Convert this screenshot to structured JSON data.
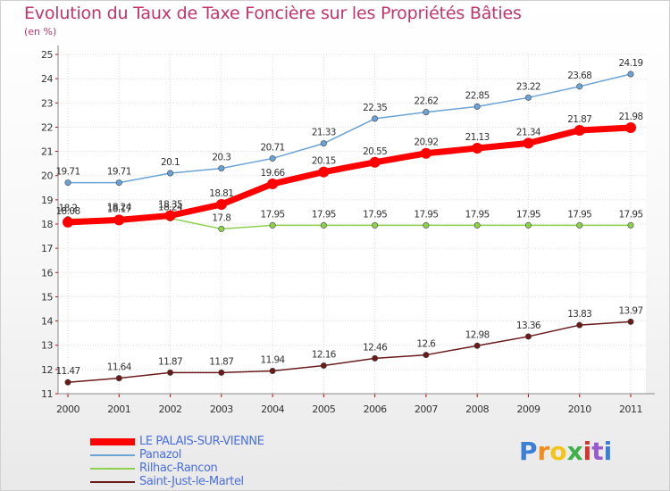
{
  "chart_data": {
    "type": "line",
    "title": "Evolution du Taux de Taxe Foncière sur les Propriétés Bâties",
    "subtitle": "(en %)",
    "categories": [
      "2000",
      "2001",
      "2002",
      "2003",
      "2004",
      "2005",
      "2006",
      "2007",
      "2008",
      "2009",
      "2010",
      "2011"
    ],
    "ylim": [
      11,
      25
    ],
    "yticks": [
      "11",
      "12",
      "13",
      "14",
      "15",
      "16",
      "17",
      "18",
      "19",
      "20",
      "21",
      "22",
      "23",
      "24",
      "25"
    ],
    "grid": true,
    "legend_position": "bottom-left",
    "series": [
      {
        "name": "Saint-Just-le-Martel",
        "color": "#6b1a1a",
        "values": [
          11.47,
          11.64,
          11.87,
          11.87,
          11.94,
          12.16,
          12.46,
          12.6,
          12.98,
          13.36,
          13.83,
          13.97
        ],
        "labels": [
          "11.47",
          "11.64",
          "11.87",
          "11.87",
          "11.94",
          "12.16",
          "12.46",
          "12.6",
          "12.98",
          "13.36",
          "13.83",
          "13.97"
        ]
      },
      {
        "name": "Rilhac-Rancon",
        "color": "#8fd14f",
        "values": [
          18.2,
          18.24,
          18.24,
          17.8,
          17.95,
          17.95,
          17.95,
          17.95,
          17.95,
          17.95,
          17.95,
          17.95
        ],
        "labels": [
          "18.2",
          "18.24",
          "18.24",
          "17.8",
          "17.95",
          "17.95",
          "17.95",
          "17.95",
          "17.95",
          "17.95",
          "17.95",
          "17.95"
        ]
      },
      {
        "name": "Panazol",
        "color": "#6ba3d6",
        "values": [
          19.71,
          19.71,
          20.1,
          20.3,
          20.71,
          21.33,
          22.35,
          22.62,
          22.85,
          23.22,
          23.68,
          24.19
        ],
        "labels": [
          "19.71",
          "19.71",
          "20.1",
          "20.3",
          "20.71",
          "21.33",
          "22.35",
          "22.62",
          "22.85",
          "23.22",
          "23.68",
          "24.19"
        ]
      },
      {
        "name": "LE PALAIS-SUR-VIENNE",
        "color": "#ff0000",
        "values": [
          18.08,
          18.17,
          18.35,
          18.81,
          19.66,
          20.15,
          20.55,
          20.92,
          21.13,
          21.34,
          21.87,
          21.98
        ],
        "labels": [
          "18.08",
          "18.17",
          "18.35",
          "18.81",
          "19.66",
          "20.15",
          "20.55",
          "20.92",
          "21.13",
          "21.34",
          "21.87",
          "21.98"
        ]
      }
    ]
  },
  "legend": {
    "items": [
      {
        "label": "LE PALAIS-SUR-VIENNE",
        "color": "#ff0000"
      },
      {
        "label": "Panazol",
        "color": "#6ba3d6"
      },
      {
        "label": "Rilhac-Rancon",
        "color": "#8fd14f"
      },
      {
        "label": "Saint-Just-le-Martel",
        "color": "#6b1a1a"
      }
    ]
  },
  "logo": {
    "text": "Proxiti",
    "letters": [
      {
        "ch": "P",
        "color": "#3a7fd6"
      },
      {
        "ch": "r",
        "color": "#f28c1c"
      },
      {
        "ch": "o",
        "color": "#f2c51c"
      },
      {
        "ch": "x",
        "color": "#3fb04a"
      },
      {
        "ch": "i",
        "color": "#d9342b"
      },
      {
        "ch": "t",
        "color": "#9a5bd1"
      },
      {
        "ch": "i",
        "color": "#3a7fd6"
      }
    ]
  }
}
